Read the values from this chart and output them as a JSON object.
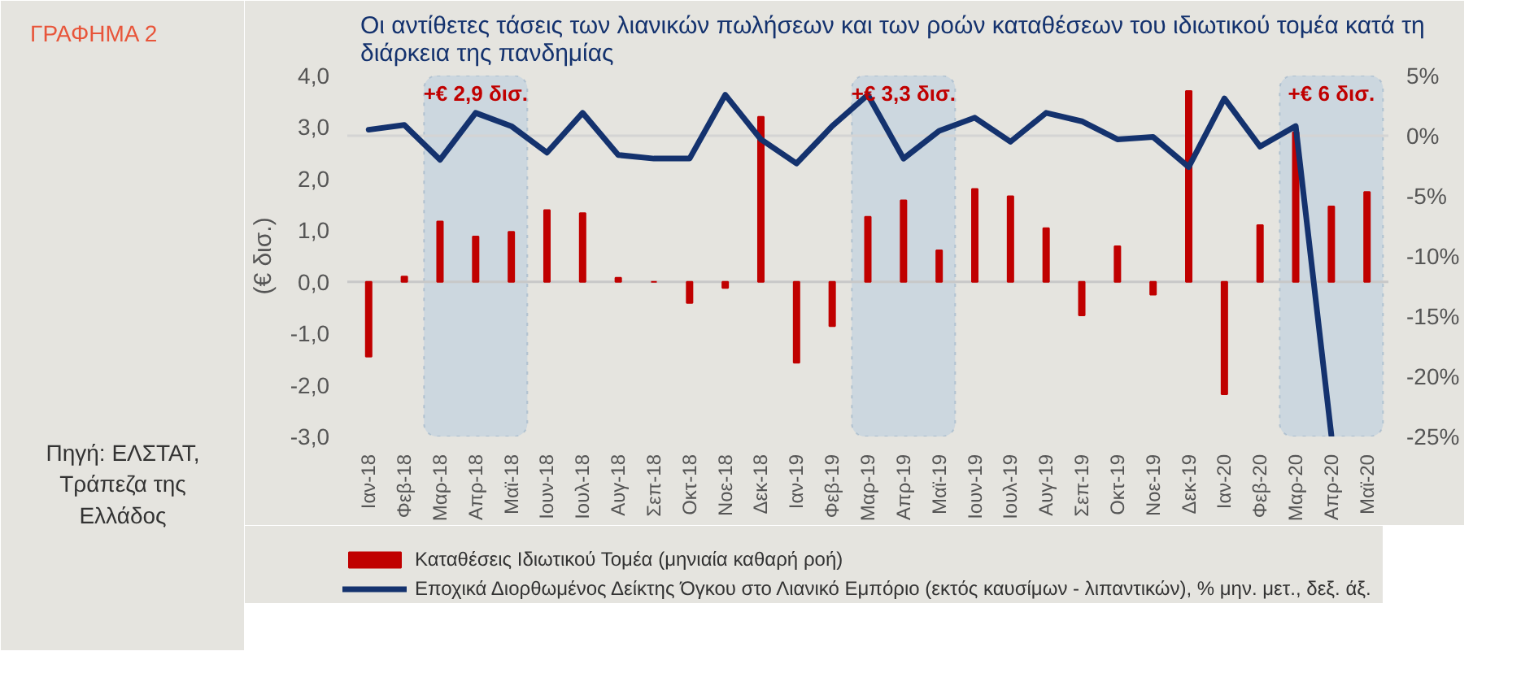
{
  "chart_data": {
    "type": "bar",
    "title": "Οι αντίθετες τάσεις των λιανικών πωλήσεων και των ροών καταθέσεων του ιδιωτικού τομέα κατά τη διάρκεια της πανδημίας",
    "ylabel": "(€ δισ.)",
    "annotations": [
      "ΓΡΑΦΗΜΑ 2",
      "Πηγή: ΕΛΣΤΑΤ, Τράπεζα της Ελλάδος"
    ],
    "categories": [
      "Ιαν-18",
      "Φεβ-18",
      "Μαρ-18",
      "Απρ-18",
      "Μαϊ-18",
      "Ιουν-18",
      "Ιουλ-18",
      "Αυγ-18",
      "Σεπ-18",
      "Οκτ-18",
      "Νοε-18",
      "Δεκ-18",
      "Ιαν-19",
      "Φεβ-19",
      "Μαρ-19",
      "Απρ-19",
      "Μαϊ-19",
      "Ιουν-19",
      "Ιουλ-19",
      "Αυγ-19",
      "Σεπ-19",
      "Οκτ-19",
      "Νοε-19",
      "Δεκ-19",
      "Ιαν-20",
      "Φεβ-20",
      "Μαρ-20",
      "Απρ-20",
      "Μαϊ-20"
    ],
    "series": [
      {
        "name": "Καταθέσεις Ιδιωτικού Τομέα (μηνιαία καθαρή ροή)",
        "color": "#c00000",
        "values": [
          -1.45,
          0.1,
          1.17,
          0.88,
          0.97,
          1.39,
          1.33,
          0.08,
          0,
          -0.41,
          -0.12,
          3.2,
          -1.57,
          -0.86,
          1.26,
          1.58,
          0.61,
          1.8,
          1.66,
          1.04,
          -0.65,
          0.69,
          -0.25,
          3.7,
          -2.18,
          1.1,
          2.9,
          1.46,
          1.74
        ]
      },
      {
        "name": "Εποχικά Διορθωμένος Δείκτης Όγκου στο Λιανικό Εμπόριο (εκτός καυσίμων - λιπαντικών), % μην. μετ., δεξ. άξ.",
        "color": "#14326e",
        "type": "line",
        "axis": "y2",
        "values": [
          0.5,
          0.9,
          -2.0,
          1.9,
          0.8,
          -1.4,
          1.9,
          -1.6,
          -1.9,
          -1.9,
          3.4,
          -0.3,
          -2.3,
          0.8,
          3.4,
          -1.9,
          0.4,
          1.5,
          -0.5,
          1.9,
          1.2,
          -0.3,
          -0.1,
          -2.6,
          3.1,
          -0.9,
          0.8,
          -24.9,
          null
        ]
      }
    ],
    "ylim": [
      -3,
      4
    ],
    "yticks": [
      {
        "value": -3,
        "label": "-3,0"
      },
      {
        "value": -2,
        "label": "-2,0"
      },
      {
        "value": -1,
        "label": "-1,0"
      },
      {
        "value": 0,
        "label": "0,0"
      },
      {
        "value": 1,
        "label": "1,0"
      },
      {
        "value": 2,
        "label": "2,0"
      },
      {
        "value": 3,
        "label": "3,0"
      },
      {
        "value": 4,
        "label": "4,0"
      }
    ],
    "y2lim": [
      -25,
      5
    ],
    "y2ticks": [
      {
        "value": -25,
        "label": "-25%"
      },
      {
        "value": -20,
        "label": "-20%"
      },
      {
        "value": -15,
        "label": "-15%"
      },
      {
        "value": -10,
        "label": "-10%"
      },
      {
        "value": -5,
        "label": "-5%"
      },
      {
        "value": 0,
        "label": "0%"
      },
      {
        "value": 5,
        "label": "5%"
      }
    ],
    "ref_lines": [
      {
        "axis": "y",
        "value": 0,
        "color": "#c8c8c8"
      },
      {
        "axis": "y2",
        "value": 0,
        "color": "#d4d4d4"
      }
    ],
    "bands": [
      {
        "axis": "x",
        "from": "Μαρ-18",
        "to": "Μαϊ-18",
        "label": "+€ 2,9 δισ.",
        "color": "#c9d5df"
      },
      {
        "axis": "x",
        "from": "Μαρ-19",
        "to": "Μαϊ-19",
        "label": "+€ 3,3 δισ.",
        "color": "#c9d5df"
      },
      {
        "axis": "x",
        "from": "Μαρ-20",
        "to": "Μαϊ-20",
        "label": "+€ 6 δισ.",
        "color": "#c9d5df"
      }
    ],
    "legend": "bottom"
  }
}
